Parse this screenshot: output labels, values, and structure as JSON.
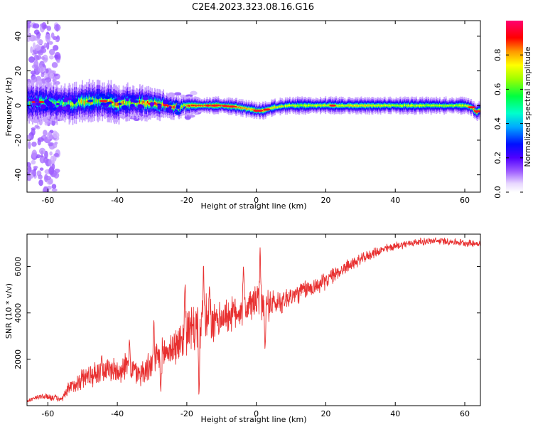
{
  "figure": {
    "title": "C2E4.2023.323.08.16.G16"
  },
  "chart_data": [
    {
      "type": "heatmap",
      "xlabel": "Height of straight line (km)",
      "ylabel": "Frequency (Hz)",
      "xlim": [
        -66,
        64.5
      ],
      "ylim": [
        -50,
        49
      ],
      "xticks": [
        -60,
        -40,
        -20,
        0,
        20,
        40,
        60
      ],
      "yticks": [
        -40,
        -20,
        0,
        20,
        40
      ],
      "colorbar": {
        "label": "Normalized spectral amplitude",
        "range": [
          0,
          1
        ],
        "ticks": [
          0.0,
          0.2,
          0.4,
          0.6,
          0.8
        ],
        "colormap": [
          "#ffffff",
          "#f0e6ff",
          "#c8a0ff",
          "#8000ff",
          "#0000ff",
          "#00c8ff",
          "#00ff80",
          "#80ff00",
          "#ffff00",
          "#ff8000",
          "#ff0000",
          "#ff0080"
        ]
      },
      "ridge": {
        "x_km": [
          -66,
          -60,
          -55,
          -50,
          -45,
          -40,
          -35,
          -30,
          -25,
          -22,
          -20,
          -15,
          -10,
          -5,
          -2,
          0,
          2,
          5,
          10,
          20,
          30,
          40,
          50,
          60,
          62,
          63.5,
          64.5
        ],
        "freq_hz": [
          2,
          2,
          1,
          2,
          3,
          1,
          2,
          1,
          0,
          -1,
          0,
          0,
          0,
          -1,
          -2,
          -3,
          -3,
          -1,
          0,
          0,
          0,
          0,
          0,
          0,
          -1,
          -4,
          -2
        ],
        "amplitude": [
          0.5,
          0.55,
          0.6,
          0.65,
          0.7,
          0.72,
          0.75,
          0.8,
          0.85,
          0.8,
          0.85,
          0.9,
          0.92,
          0.85,
          0.8,
          0.9,
          0.85,
          0.75,
          0.7,
          0.72,
          0.75,
          0.7,
          0.68,
          0.7,
          0.85,
          0.9,
          0.6
        ],
        "width_hz": [
          6,
          6,
          6,
          6,
          6,
          6,
          5,
          5,
          4,
          3,
          3,
          2.5,
          2.5,
          2.5,
          2.5,
          2.5,
          2.5,
          2.5,
          2.5,
          2.5,
          2.5,
          2.5,
          2.5,
          2.5,
          2.5,
          3,
          3
        ]
      },
      "noise_band_x_km": [
        -66,
        -57
      ]
    },
    {
      "type": "line",
      "xlabel": "Height of straight line (km)",
      "ylabel": "SNR (10 * v/v)",
      "xlim": [
        -66,
        64.5
      ],
      "ylim": [
        0,
        7400
      ],
      "xticks": [
        -60,
        -40,
        -20,
        0,
        20,
        40,
        60
      ],
      "yticks": [
        2000,
        4000,
        6000
      ],
      "line_color": "#e83030",
      "series": [
        {
          "x": [
            -66,
            -62,
            -58,
            -56,
            -54,
            -50,
            -46,
            -42,
            -40,
            -38,
            -36,
            -34,
            -32,
            -30,
            -28,
            -26,
            -24,
            -22,
            -20,
            -18,
            -16,
            -14,
            -12,
            -10,
            -8,
            -6,
            -4,
            -2,
            0,
            2,
            4,
            6,
            8,
            10,
            14,
            18,
            22,
            26,
            30,
            34,
            38,
            42,
            46,
            50,
            54,
            58,
            62,
            64.5
          ],
          "y": [
            200,
            400,
            350,
            250,
            700,
            1200,
            1400,
            1600,
            1500,
            1700,
            1600,
            1400,
            1500,
            1800,
            2100,
            2300,
            2500,
            2700,
            3200,
            3300,
            3600,
            3600,
            3500,
            3800,
            3900,
            4000,
            4200,
            4300,
            4500,
            4300,
            4400,
            4400,
            4600,
            4700,
            5000,
            5200,
            5600,
            6000,
            6300,
            6600,
            6800,
            6950,
            7050,
            7100,
            7100,
            7050,
            7000,
            7000
          ],
          "jitter": [
            80,
            150,
            150,
            120,
            350,
            500,
            550,
            600,
            600,
            650,
            600,
            600,
            650,
            700,
            750,
            800,
            850,
            950,
            1100,
            1100,
            1200,
            1200,
            900,
            800,
            800,
            800,
            800,
            800,
            900,
            850,
            700,
            600,
            550,
            500,
            450,
            400,
            350,
            300,
            250,
            220,
            200,
            180,
            170,
            160,
            160,
            160,
            160,
            160
          ]
        }
      ],
      "spikes": [
        {
          "x": -29.5,
          "y": 3800
        },
        {
          "x": -20.5,
          "y": 5500
        },
        {
          "x": -15.2,
          "y": 6300
        },
        {
          "x": -13.5,
          "y": 5200
        },
        {
          "x": 1.1,
          "y": 6900
        },
        {
          "x": -3.7,
          "y": 6100
        },
        {
          "x": -36.5,
          "y": 2950
        },
        {
          "x": -44.5,
          "y": 2250
        },
        {
          "x": -16.5,
          "y": 200
        },
        {
          "x": 2.5,
          "y": 2300
        },
        {
          "x": -27.5,
          "y": 500
        }
      ]
    }
  ]
}
